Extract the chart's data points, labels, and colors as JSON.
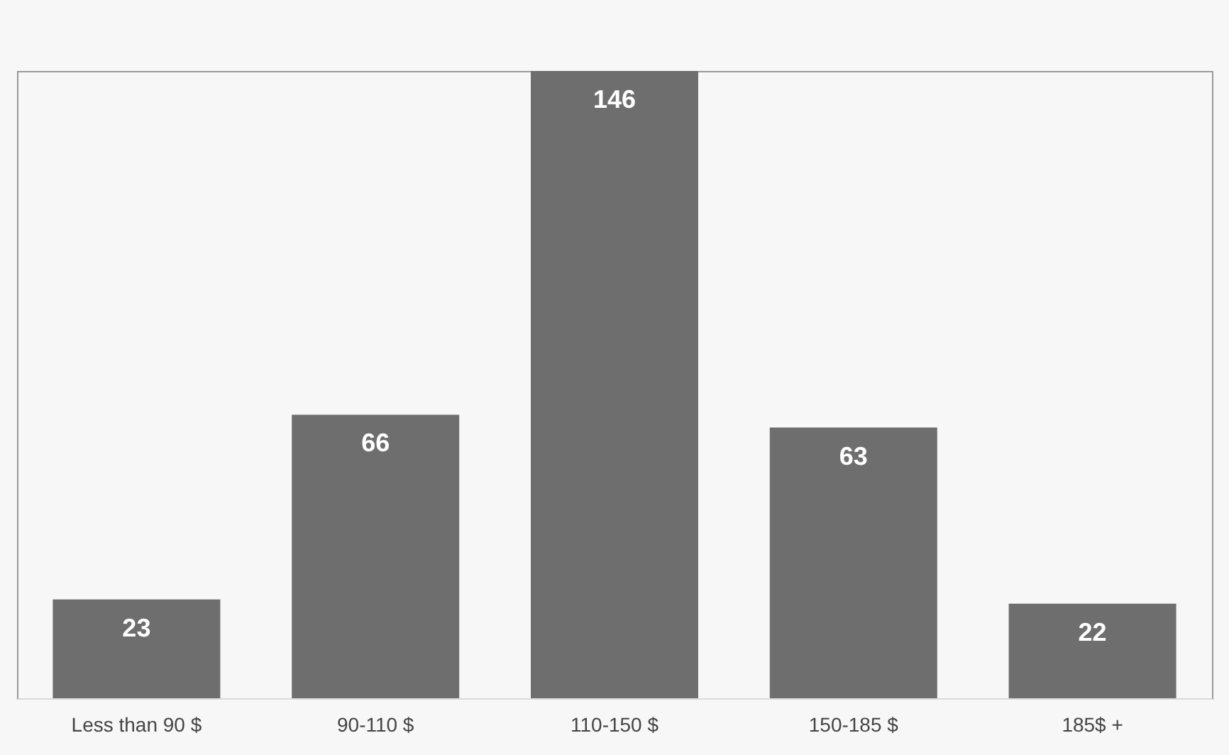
{
  "chart_data": {
    "type": "bar",
    "categories": [
      "Less than 90 $",
      "90-110 $",
      "110-150 $",
      "150-185 $",
      "185$ +"
    ],
    "values": [
      23,
      66,
      146,
      63,
      22
    ],
    "color": "#6e6e6e",
    "data_labels": true,
    "grid": false
  }
}
